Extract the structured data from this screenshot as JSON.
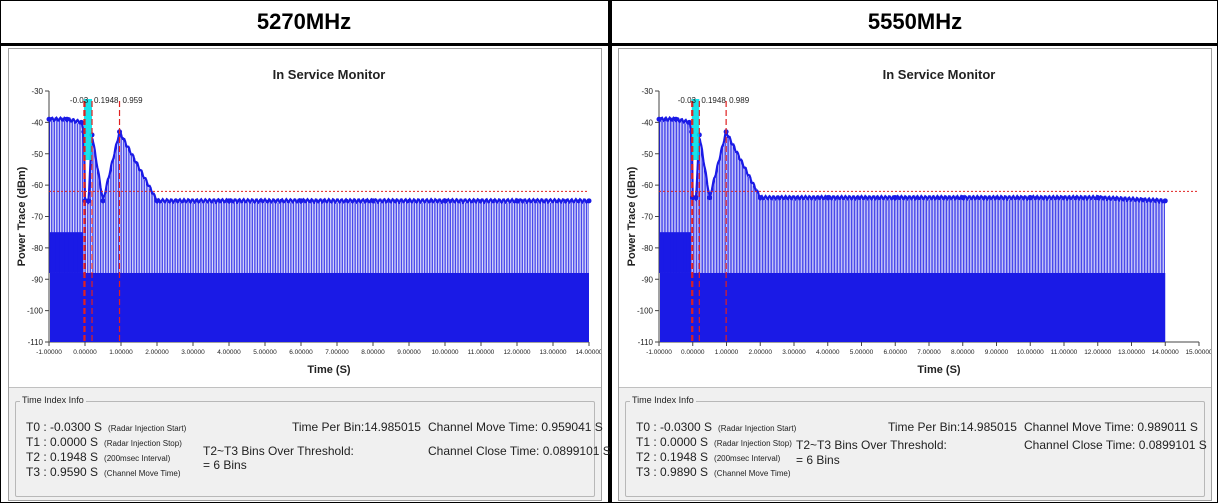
{
  "panels": [
    {
      "frequency": "5270MHz",
      "title": "In Service Monitor",
      "ylabel": "Power Trace (dBm)",
      "xlabel": "Time (S)",
      "marker_labels": [
        "-0.03",
        "0.1948",
        "0.959"
      ],
      "time_index_info": {
        "legend": "Time Index Info",
        "t0": "T0 : -0.0300  S",
        "t0_note": "(Radar Injection Start)",
        "t1": "T1 : 0.0000  S",
        "t1_note": "(Radar Injection Stop)",
        "t2": "T2 : 0.1948  S",
        "t2_note": "(200msec Interval)",
        "t3": "T3 : 0.9590  S",
        "t3_note": "(Channel Move Time)",
        "time_per_bin": "Time Per Bin:14.985015",
        "channel_move_time": "Channel Move Time: 0.959041  S",
        "bins_label": "T2~T3 Bins Over Threshold:",
        "bins_value": "= 6 Bins",
        "channel_close_time": "Channel Close Time: 0.0899101  S"
      }
    },
    {
      "frequency": "5550MHz",
      "title": "In Service Monitor",
      "ylabel": "Power Trace (dBm)",
      "xlabel": "Time (S)",
      "marker_labels": [
        "-0.03",
        "0.1948",
        "0.989"
      ],
      "time_index_info": {
        "legend": "Time Index Info",
        "t0": "T0 : -0.0300  S",
        "t0_note": "(Radar Injection Start)",
        "t1": "T1 : 0.0000  S",
        "t1_note": "(Radar Injection Stop)",
        "t2": "T2 : 0.1948  S",
        "t2_note": "(200msec Interval)",
        "t3": "T3 : 0.9890  S",
        "t3_note": "(Channel Move Time)",
        "time_per_bin": "Time Per Bin:14.985015",
        "channel_move_time": "Channel Move Time: 0.989011  S",
        "bins_label": "T2~T3 Bins Over Threshold:",
        "bins_value": "= 6 Bins",
        "channel_close_time": "Channel Close Time: 0.0899101  S"
      }
    }
  ],
  "colors": {
    "trace": "#1a1ae6",
    "threshold": "#e02020",
    "marker": "#e02020",
    "highlight": "#00e0e8"
  },
  "chart_data": [
    {
      "type": "line",
      "title": "In Service Monitor",
      "xlabel": "Time (S)",
      "ylabel": "Power Trace (dBm)",
      "xlim": [
        -1.0,
        14.0
      ],
      "ylim": [
        -110,
        -30
      ],
      "xticks": [
        "-1.00000",
        "0.00000",
        "1.00000",
        "2.00000",
        "3.00000",
        "4.00000",
        "5.00000",
        "6.00000",
        "7.00000",
        "8.00000",
        "9.00000",
        "10.00000",
        "11.00000",
        "12.00000",
        "13.00000",
        "14.00000"
      ],
      "yticks": [
        "-30",
        "-40",
        "-50",
        "-60",
        "-70",
        "-80",
        "-90",
        "-100",
        "-110"
      ],
      "threshold_dbm": -62,
      "markers": [
        -0.03,
        0.0,
        0.1948,
        0.959
      ],
      "series": [
        {
          "x": [
            -1.0,
            -0.5,
            -0.1,
            -0.03,
            0.0,
            0.1,
            0.1948,
            0.5,
            0.959,
            2.0,
            4.0,
            6.0,
            8.0,
            10.0,
            12.0,
            14.0
          ],
          "values": [
            -39,
            -39,
            -40,
            -43,
            -65,
            -65,
            -44,
            -65,
            -43,
            -65,
            -65,
            -65,
            -65,
            -65,
            -65,
            -65
          ]
        }
      ]
    },
    {
      "type": "line",
      "title": "In Service Monitor",
      "xlabel": "Time (S)",
      "ylabel": "Power Trace (dBm)",
      "xlim": [
        -1.0,
        15.0
      ],
      "ylim": [
        -110,
        -30
      ],
      "xticks": [
        "-1.00000",
        "0.00000",
        "1.00000",
        "2.00000",
        "3.00000",
        "4.00000",
        "5.00000",
        "6.00000",
        "7.00000",
        "8.00000",
        "9.00000",
        "10.00000",
        "11.00000",
        "12.00000",
        "13.00000",
        "14.00000",
        "15.00000"
      ],
      "yticks": [
        "-30",
        "-40",
        "-50",
        "-60",
        "-70",
        "-80",
        "-90",
        "-100",
        "-110"
      ],
      "threshold_dbm": -62,
      "markers": [
        -0.03,
        0.0,
        0.1948,
        0.989
      ],
      "series": [
        {
          "x": [
            -1.0,
            -0.5,
            -0.1,
            -0.03,
            0.0,
            0.1,
            0.1948,
            0.5,
            0.989,
            2.0,
            4.0,
            6.0,
            8.0,
            10.0,
            12.0,
            14.0
          ],
          "values": [
            -39,
            -39,
            -40,
            -43,
            -64,
            -64,
            -44,
            -64,
            -43,
            -64,
            -64,
            -64,
            -64,
            -64,
            -64,
            -65
          ]
        }
      ]
    }
  ]
}
